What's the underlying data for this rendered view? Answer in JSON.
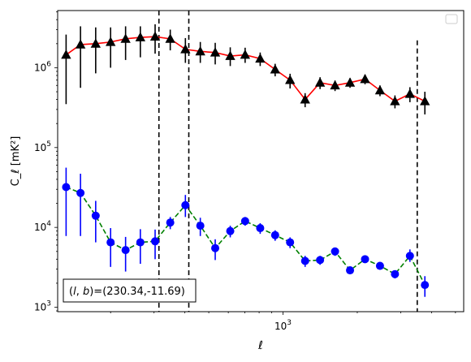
{
  "chart_data": {
    "type": "scatter",
    "xlabel": "ℓ",
    "ylabel": "C_ℓ  [mK²]",
    "xscale": "log",
    "yscale": "log",
    "xlim": [
      122,
      5400
    ],
    "ylim": [
      880,
      5200000
    ],
    "x_tick_labels": [
      {
        "value": 1000,
        "base": "10",
        "exp": "3"
      }
    ],
    "y_tick_labels": [
      {
        "value": 1000,
        "base": "10",
        "exp": "3"
      },
      {
        "value": 10000,
        "base": "10",
        "exp": "4"
      },
      {
        "value": 100000,
        "base": "10",
        "exp": "5"
      },
      {
        "value": 1000000,
        "base": "10",
        "exp": "6"
      }
    ],
    "legend": {
      "position": "top-right",
      "entries": []
    },
    "annotation": "(l, b)=(230.34,-11.69)",
    "annotation_parts": {
      "prefix": "(",
      "l": "l",
      "sep": ", ",
      "b": "b",
      "suffix": ")=(230.34,-11.69)"
    },
    "vlines": [
      {
        "x": 314,
        "color": "#000000",
        "style": "dashed",
        "ymin": 880,
        "ymax": 5200000
      },
      {
        "x": 415,
        "color": "#000000",
        "style": "dashed",
        "ymin": 880,
        "ymax": 5200000
      },
      {
        "x": 3500,
        "color": "#000000",
        "style": "dashed",
        "ymin": 880,
        "ymax": 2200000
      }
    ],
    "series": [
      {
        "marker": "triangle",
        "marker_color": "#000000",
        "line_color": "#ff0000",
        "line_style": "solid",
        "points": [
          {
            "x": 132,
            "y": 1450000,
            "lo": 350000,
            "hi": 2600000
          },
          {
            "x": 151,
            "y": 1950000,
            "lo": 560000,
            "hi": 3300000
          },
          {
            "x": 174,
            "y": 2000000,
            "lo": 850000,
            "hi": 3200000
          },
          {
            "x": 200,
            "y": 2100000,
            "lo": 1000000,
            "hi": 3200000
          },
          {
            "x": 230,
            "y": 2300000,
            "lo": 1250000,
            "hi": 3300000
          },
          {
            "x": 264,
            "y": 2400000,
            "lo": 1350000,
            "hi": 3300000
          },
          {
            "x": 303,
            "y": 2450000,
            "lo": 1500000,
            "hi": 3500000
          },
          {
            "x": 349,
            "y": 2300000,
            "lo": 1650000,
            "hi": 3000000
          },
          {
            "x": 402,
            "y": 1700000,
            "lo": 1150000,
            "hi": 2350000
          },
          {
            "x": 462,
            "y": 1600000,
            "lo": 1150000,
            "hi": 2100000
          },
          {
            "x": 531,
            "y": 1550000,
            "lo": 1100000,
            "hi": 2050000
          },
          {
            "x": 611,
            "y": 1400000,
            "lo": 1050000,
            "hi": 1800000
          },
          {
            "x": 702,
            "y": 1450000,
            "lo": 1150000,
            "hi": 1780000
          },
          {
            "x": 808,
            "y": 1300000,
            "lo": 1050000,
            "hi": 1550000
          },
          {
            "x": 929,
            "y": 950000,
            "lo": 780000,
            "hi": 1120000
          },
          {
            "x": 1068,
            "y": 700000,
            "lo": 550000,
            "hi": 840000
          },
          {
            "x": 1229,
            "y": 400000,
            "lo": 320000,
            "hi": 480000
          },
          {
            "x": 1413,
            "y": 650000,
            "lo": 540000,
            "hi": 760000
          },
          {
            "x": 1625,
            "y": 600000,
            "lo": 510000,
            "hi": 690000
          },
          {
            "x": 1869,
            "y": 650000,
            "lo": 560000,
            "hi": 740000
          },
          {
            "x": 2150,
            "y": 720000,
            "lo": 620000,
            "hi": 820000
          },
          {
            "x": 2472,
            "y": 520000,
            "lo": 440000,
            "hi": 600000
          },
          {
            "x": 2843,
            "y": 380000,
            "lo": 310000,
            "hi": 450000
          },
          {
            "x": 3269,
            "y": 470000,
            "lo": 370000,
            "hi": 570000
          },
          {
            "x": 3759,
            "y": 380000,
            "lo": 260000,
            "hi": 500000
          }
        ]
      },
      {
        "marker": "circle",
        "marker_color": "#0000ff",
        "line_color": "#008000",
        "line_style": "dashed",
        "points": [
          {
            "x": 132,
            "y": 32000,
            "lo": 7800,
            "hi": 56000
          },
          {
            "x": 151,
            "y": 27000,
            "lo": 7800,
            "hi": 47000
          },
          {
            "x": 174,
            "y": 14000,
            "lo": 6500,
            "hi": 21500
          },
          {
            "x": 200,
            "y": 6500,
            "lo": 3200,
            "hi": 9800
          },
          {
            "x": 230,
            "y": 5200,
            "lo": 2800,
            "hi": 7600
          },
          {
            "x": 264,
            "y": 6500,
            "lo": 3500,
            "hi": 9500
          },
          {
            "x": 303,
            "y": 6700,
            "lo": 4000,
            "hi": 9400
          },
          {
            "x": 349,
            "y": 11500,
            "lo": 9500,
            "hi": 13500
          },
          {
            "x": 402,
            "y": 19000,
            "lo": 13500,
            "hi": 25500
          },
          {
            "x": 462,
            "y": 10500,
            "lo": 7800,
            "hi": 13200
          },
          {
            "x": 531,
            "y": 5500,
            "lo": 3900,
            "hi": 7100
          },
          {
            "x": 611,
            "y": 9000,
            "lo": 7500,
            "hi": 10500
          },
          {
            "x": 702,
            "y": 12000,
            "lo": 10500,
            "hi": 13500
          },
          {
            "x": 808,
            "y": 9800,
            "lo": 8300,
            "hi": 11300
          },
          {
            "x": 929,
            "y": 8000,
            "lo": 6800,
            "hi": 9200
          },
          {
            "x": 1068,
            "y": 6500,
            "lo": 5500,
            "hi": 7500
          },
          {
            "x": 1229,
            "y": 3800,
            "lo": 3200,
            "hi": 4400
          },
          {
            "x": 1413,
            "y": 3900,
            "lo": 3400,
            "hi": 4400
          },
          {
            "x": 1625,
            "y": 5000,
            "lo": 4400,
            "hi": 5600
          },
          {
            "x": 1869,
            "y": 2900,
            "lo": 2600,
            "hi": 3200
          },
          {
            "x": 2150,
            "y": 4000,
            "lo": 3600,
            "hi": 4400
          },
          {
            "x": 2472,
            "y": 3300,
            "lo": 2950,
            "hi": 3650
          },
          {
            "x": 2843,
            "y": 2600,
            "lo": 2300,
            "hi": 2900
          },
          {
            "x": 3269,
            "y": 4400,
            "lo": 3700,
            "hi": 5300
          },
          {
            "x": 3759,
            "y": 1900,
            "lo": 1350,
            "hi": 2450
          }
        ]
      }
    ]
  }
}
